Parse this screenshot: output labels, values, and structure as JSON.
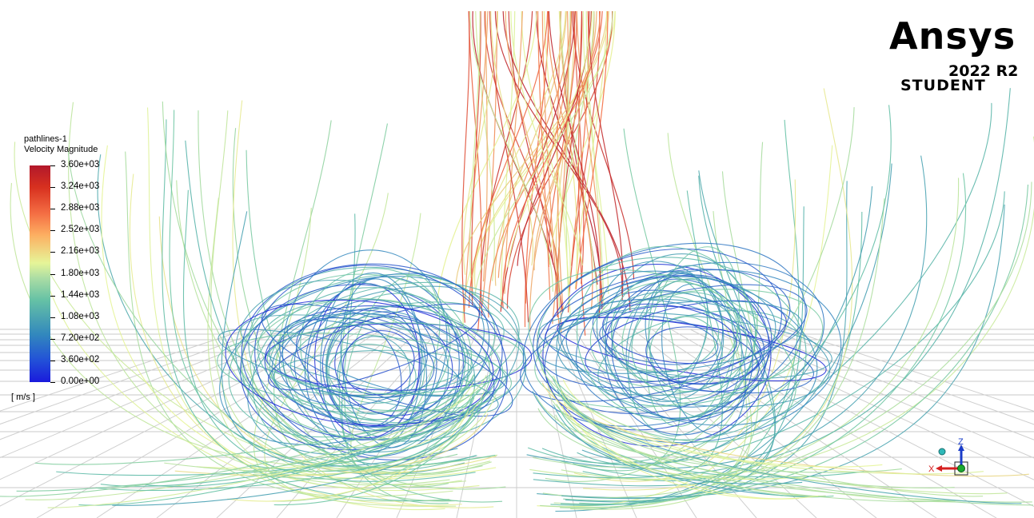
{
  "legend": {
    "title_line1": "pathlines-1",
    "title_line2": "Velocity Magnitude",
    "ticks": [
      "3.60e+03",
      "3.24e+03",
      "2.88e+03",
      "2.52e+03",
      "2.16e+03",
      "1.80e+03",
      "1.44e+03",
      "1.08e+03",
      "7.20e+02",
      "3.60e+02",
      "0.00e+00"
    ],
    "units": "[ m/s ]",
    "min": 0,
    "max": 3600
  },
  "brand": {
    "name": "Ansys",
    "version": "2022 R2",
    "edition": "STUDENT"
  },
  "triad": {
    "z_label": "Z",
    "x_label": "X"
  },
  "colors": {
    "max": "#b2182b",
    "high": "#f46d43",
    "mid": "#e6f598",
    "midlow": "#66c2a5",
    "low": "#3288bd",
    "min": "#1a1adc"
  }
}
